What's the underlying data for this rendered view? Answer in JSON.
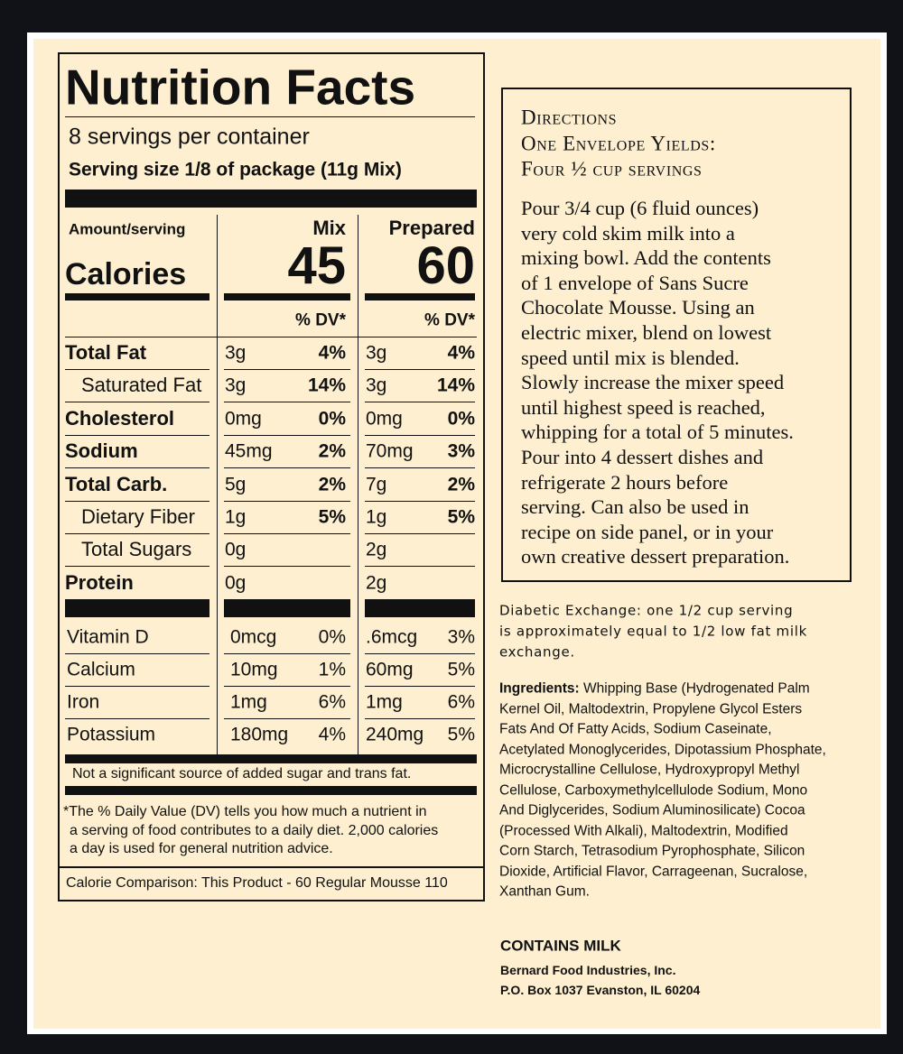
{
  "nutrition_facts": {
    "title": "Nutrition Facts",
    "servings": "8 servings per container",
    "serving_size": "Serving size 1/8 of package (11g Mix)",
    "amount_per_serving": "Amount/serving",
    "calories_label": "Calories",
    "columns": [
      {
        "name": "Mix",
        "calories": "45"
      },
      {
        "name": "Prepared",
        "calories": "60"
      }
    ],
    "dv_header": "% DV*",
    "nutrients": [
      {
        "name": "Total Fat",
        "bold": true,
        "values": [
          [
            "3g",
            "4%"
          ],
          [
            "3g",
            "4%"
          ]
        ]
      },
      {
        "name": "Saturated Fat",
        "indent": true,
        "values": [
          [
            "3g",
            "14%"
          ],
          [
            "3g",
            "14%"
          ]
        ]
      },
      {
        "name": "Cholesterol",
        "bold": true,
        "values": [
          [
            "0mg",
            "0%"
          ],
          [
            "0mg",
            "0%"
          ]
        ]
      },
      {
        "name": "Sodium",
        "bold": true,
        "values": [
          [
            "45mg",
            "2%"
          ],
          [
            "70mg",
            "3%"
          ]
        ]
      },
      {
        "name": "Total Carb.",
        "bold": true,
        "values": [
          [
            "5g",
            "2%"
          ],
          [
            "7g",
            "2%"
          ]
        ]
      },
      {
        "name": "Dietary Fiber",
        "indent": true,
        "values": [
          [
            "1g",
            "5%"
          ],
          [
            "1g",
            "5%"
          ]
        ]
      },
      {
        "name": "Total Sugars",
        "indent": true,
        "values": [
          [
            "0g"
          ],
          [
            "2g"
          ]
        ]
      },
      {
        "name": "Protein",
        "bold": true,
        "values": [
          [
            "0g"
          ],
          [
            "2g"
          ]
        ]
      }
    ],
    "vitamins": [
      {
        "name": "Vitamin D",
        "values": [
          [
            "0mcg",
            "0%"
          ],
          [
            ".6mcg",
            "3%"
          ]
        ]
      },
      {
        "name": "Calcium",
        "values": [
          [
            "10mg",
            "1%"
          ],
          [
            "60mg",
            "5%"
          ]
        ]
      },
      {
        "name": "Iron",
        "values": [
          [
            "1mg",
            "6%"
          ],
          [
            "1mg",
            "6%"
          ]
        ]
      },
      {
        "name": "Potassium",
        "values": [
          [
            "180mg",
            "4%"
          ],
          [
            "240mg",
            "5%"
          ]
        ]
      }
    ],
    "note": "Not a significant source of added sugar and trans fat.",
    "footnote_lines": [
      "*The % Daily Value (DV) tells you how much a nutrient in",
      "a serving of food contributes to a daily diet. 2,000 calories",
      "a day is used for general nutrition advice."
    ],
    "calorie_comparison": "Calorie Comparison: This Product - 60 Regular Mousse 110"
  },
  "directions": {
    "heading_lines": [
      "Directions",
      "One Envelope Yields:",
      "Four ½ cup servings"
    ],
    "body_lines": [
      "Pour 3/4 cup (6 fluid ounces)",
      "very cold skim milk into a",
      "mixing bowl. Add the contents",
      "of 1 envelope of Sans Sucre",
      "Chocolate Mousse. Using an",
      "electric mixer, blend on lowest",
      "speed until mix is blended.",
      "Slowly increase the mixer speed",
      "until highest speed is reached,",
      "whipping for a total of 5 minutes.",
      "Pour into 4 dessert dishes and",
      "refrigerate 2 hours before",
      "serving. Can also be used in",
      "recipe on side panel, or in your",
      "own creative dessert preparation."
    ]
  },
  "diabetic_exchange_lines": [
    "Diabetic Exchange: one 1/2 cup serving",
    "is approximately equal to 1/2 low fat milk",
    "exchange."
  ],
  "ingredients": {
    "label": "Ingredients:",
    "lines": [
      "Whipping Base (Hydrogenated Palm",
      "Kernel Oil, Maltodextrin, Propylene Glycol Esters",
      "Fats And Of Fatty Acids, Sodium Caseinate,",
      "Acetylated Monoglycerides, Dipotassium Phosphate,",
      "Microcrystalline Cellulose, Hydroxypropyl Methyl",
      "Cellulose, Carboxymethylcellulode Sodium, Mono",
      "And Diglycerides, Sodium Aluminosilicate) Cocoa",
      "(Processed With Alkali), Maltodextrin, Modified",
      "Corn Starch, Tetrasodium Pyrophosphate, Silicon",
      "Dioxide, Artificial Flavor, Carrageenan, Sucralose,",
      "Xanthan Gum."
    ]
  },
  "allergen": "CONTAINS MILK",
  "company_lines": [
    "Bernard Food Industries, Inc.",
    "P.O. Box 1037 Evanston, IL 60204"
  ]
}
